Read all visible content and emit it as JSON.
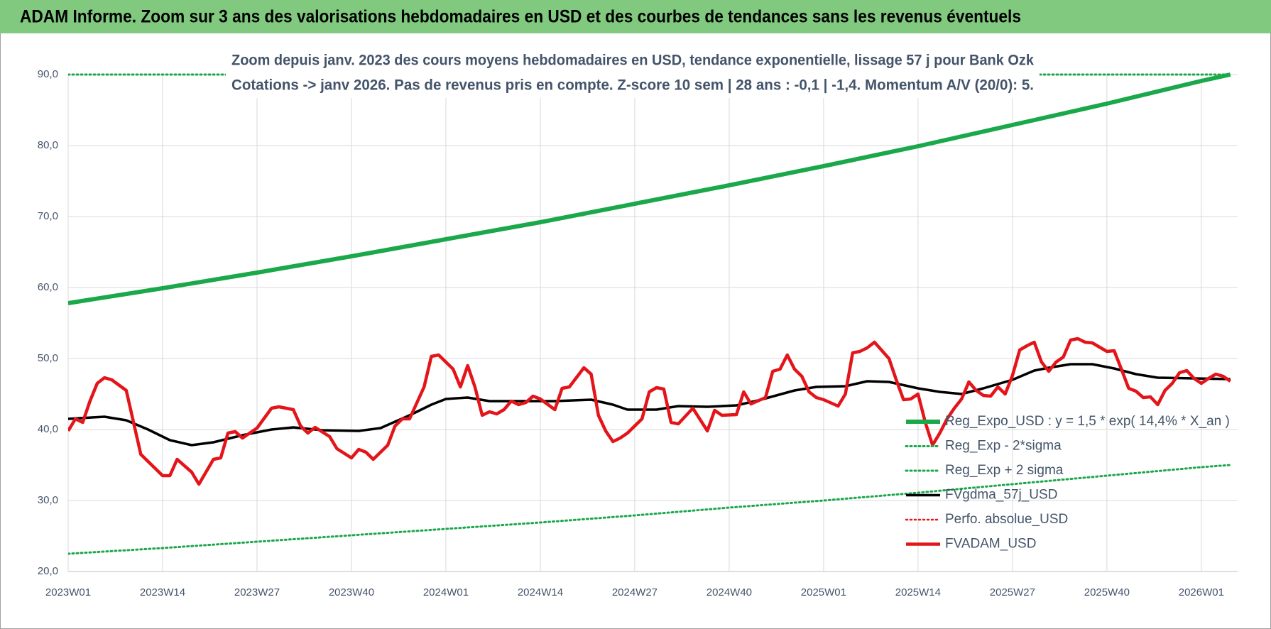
{
  "chart_data": {
    "type": "line",
    "title": "ADAM Informe. Zoom sur 3 ans des valorisations hebdomadaires en USD et des courbes de tendances sans les revenus éventuels",
    "subtitle": [
      "Zoom depuis janv. 2023 des cours moyens hebdomadaires en USD, tendance exponentielle, lissage 57 j pour Bank Ozk",
      "Cotations -> janv 2026. Pas de revenus pris en compte. Z-score 10 sem | 28 ans : -0,1 | -1,4. Momentum A/V (20/0): 5."
    ],
    "xlim": [
      0,
      161
    ],
    "xticks": [
      {
        "value": 0,
        "label": "2023W01"
      },
      {
        "value": 13,
        "label": "2023W14"
      },
      {
        "value": 26,
        "label": "2023W27"
      },
      {
        "value": 39,
        "label": "2023W40"
      },
      {
        "value": 52,
        "label": "2024W01"
      },
      {
        "value": 65,
        "label": "2024W14"
      },
      {
        "value": 78,
        "label": "2024W27"
      },
      {
        "value": 91,
        "label": "2024W40"
      },
      {
        "value": 104,
        "label": "2025W01"
      },
      {
        "value": 117,
        "label": "2025W14"
      },
      {
        "value": 130,
        "label": "2025W27"
      },
      {
        "value": 143,
        "label": "2025W40"
      },
      {
        "value": 156,
        "label": "2026W01"
      }
    ],
    "ylim": [
      20,
      90
    ],
    "yticks": [
      {
        "value": 20,
        "label": "20,0"
      },
      {
        "value": 30,
        "label": "30,0"
      },
      {
        "value": 40,
        "label": "40,0"
      },
      {
        "value": 50,
        "label": "50,0"
      },
      {
        "value": 60,
        "label": "60,0"
      },
      {
        "value": 70,
        "label": "70,0"
      },
      {
        "value": 80,
        "label": "80,0"
      },
      {
        "value": 90,
        "label": "90,0"
      }
    ],
    "grid": true,
    "series": [
      {
        "name": "Reg_Expo_USD : y = 1,5 * exp( 14,4% *  X_an )",
        "color": "#1aa84a",
        "style": "solid",
        "width": 6,
        "x": [
          0,
          13,
          26,
          39,
          52,
          65,
          78,
          91,
          104,
          117,
          130,
          143,
          156,
          160
        ],
        "values": [
          57.8,
          59.9,
          62.1,
          64.4,
          66.8,
          69.2,
          71.8,
          74.4,
          77.1,
          79.9,
          82.9,
          85.9,
          89.1,
          90.0
        ]
      },
      {
        "name": "Reg_Exp - 2*sigma",
        "color": "#1aa84a",
        "style": "dotted",
        "width": 3,
        "x": [
          0,
          13,
          26,
          39,
          52,
          65,
          78,
          91,
          104,
          117,
          130,
          143,
          156,
          160
        ],
        "values": [
          22.5,
          23.3,
          24.2,
          25.1,
          26.0,
          26.9,
          27.9,
          29.0,
          30.0,
          31.1,
          32.3,
          33.5,
          34.7,
          35.0
        ]
      },
      {
        "name": "Reg_Exp + 2 sigma",
        "color": "#1aa84a",
        "style": "dotted",
        "width": 3,
        "x": [
          0,
          160
        ],
        "values": [
          90,
          90
        ]
      },
      {
        "name": "FVgdma_57j_USD",
        "color": "#000000",
        "style": "solid",
        "width": 3.5,
        "x": [
          0,
          5,
          8,
          11,
          14,
          17,
          20,
          24,
          28,
          31,
          35,
          40,
          43,
          47,
          50,
          52,
          55,
          58,
          63,
          67,
          72,
          75,
          77,
          81,
          84,
          88,
          92,
          95,
          100,
          103,
          107,
          110,
          113,
          117,
          120,
          123,
          126,
          130,
          133,
          135,
          138,
          141,
          144,
          147,
          150,
          155,
          160
        ],
        "values": [
          41.5,
          41.8,
          41.3,
          40,
          38.5,
          37.8,
          38.2,
          39.2,
          40,
          40.3,
          39.9,
          39.8,
          40.2,
          42,
          43.5,
          44.3,
          44.5,
          44,
          44,
          44,
          44.2,
          43.5,
          42.8,
          42.8,
          43.3,
          43.2,
          43.4,
          44.1,
          45.5,
          46,
          46.1,
          46.8,
          46.7,
          45.8,
          45.3,
          45,
          45.8,
          47,
          48.3,
          48.7,
          49.2,
          49.2,
          48.6,
          47.8,
          47.3,
          47.2,
          47.1
        ]
      },
      {
        "name": "Perfo. absolue_USD",
        "color": "#e3151a",
        "style": "dotted",
        "width": 2.5,
        "x": [],
        "values": []
      },
      {
        "name": "FVADAM_USD",
        "color": "#e3151a",
        "style": "solid",
        "width": 4.5,
        "x": [
          0,
          1,
          2,
          3,
          4,
          5,
          6,
          8,
          10,
          12,
          13,
          14,
          15,
          17,
          18,
          20,
          21,
          22,
          23,
          24,
          26,
          28,
          29,
          31,
          32,
          33,
          34,
          36,
          37,
          39,
          40,
          41,
          42,
          44,
          45,
          46,
          47,
          49,
          50,
          51,
          53,
          54,
          55,
          56,
          57,
          58,
          59,
          60,
          61,
          62,
          63,
          64,
          65,
          67,
          68,
          69,
          71,
          72,
          73,
          74,
          75,
          76,
          77,
          79,
          80,
          81,
          82,
          83,
          84,
          86,
          88,
          89,
          90,
          92,
          93,
          94,
          96,
          97,
          98,
          99,
          100,
          101,
          102,
          103,
          104,
          106,
          107,
          108,
          109,
          110,
          111,
          113,
          114,
          115,
          116,
          117,
          118,
          119,
          120,
          121,
          122,
          123,
          124,
          125,
          126,
          127,
          128,
          129,
          130,
          131,
          132,
          133,
          134,
          135,
          136,
          137,
          138,
          139,
          140,
          141,
          142,
          143,
          144,
          145,
          146,
          147,
          148,
          149,
          150,
          151,
          152,
          153,
          154,
          155,
          156,
          157,
          158,
          159,
          160
        ],
        "values": [
          39.8,
          41.5,
          41,
          44,
          46.5,
          47.3,
          47,
          45.5,
          36.5,
          34.5,
          33.5,
          33.5,
          35.8,
          34,
          32.3,
          35.8,
          36,
          39.5,
          39.7,
          38.8,
          40.2,
          43,
          43.2,
          42.8,
          40.5,
          39.5,
          40.3,
          39,
          37.3,
          36,
          37.2,
          36.8,
          35.8,
          37.8,
          40.5,
          41.5,
          41.5,
          46,
          50.3,
          50.5,
          48.5,
          46,
          49,
          46,
          42,
          42.5,
          42.2,
          42.8,
          44,
          43.5,
          43.8,
          44.7,
          44.3,
          42.8,
          45.8,
          46,
          48.7,
          47.8,
          42,
          39.8,
          38.3,
          38.8,
          39.5,
          41.5,
          45.3,
          45.9,
          45.7,
          41,
          40.8,
          43,
          39.8,
          42.7,
          42,
          42.1,
          45.3,
          43.6,
          44.5,
          48.2,
          48.5,
          50.5,
          48.5,
          47.5,
          45.3,
          44.5,
          44.2,
          43.3,
          45,
          50.8,
          51,
          51.5,
          52.3,
          50,
          47,
          44.2,
          44.3,
          45,
          41,
          37.8,
          39.5,
          41.5,
          43,
          44.3,
          46.7,
          45.5,
          44.8,
          44.7,
          46,
          45,
          47.6,
          51.2,
          51.8,
          52.3,
          49.5,
          48.2,
          49.5,
          50.2,
          52.6,
          52.8,
          52.3,
          52.2,
          51.6,
          51,
          51.1,
          48.5,
          45.8,
          45.4,
          44.5,
          44.6,
          43.5,
          45.5,
          46.5,
          48,
          48.3,
          47.2,
          46.5,
          47.2,
          47.8,
          47.5,
          46.8
        ]
      }
    ]
  }
}
